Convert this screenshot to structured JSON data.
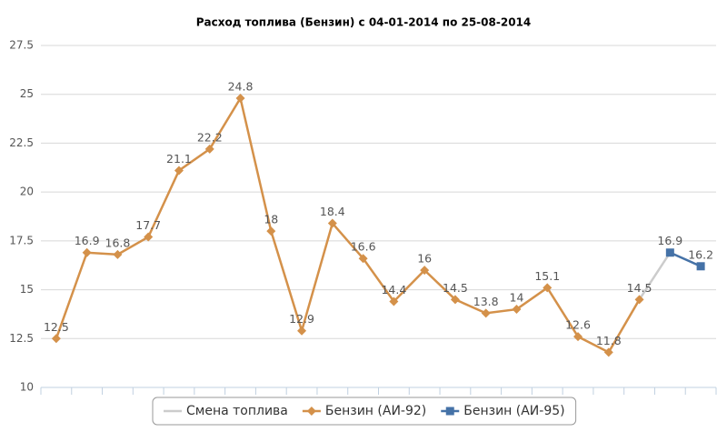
{
  "chart_data": {
    "type": "line",
    "title": "Расход топлива (Бензин) с 04-01-2014 по 25-08-2014",
    "categories": [
      null,
      null,
      null,
      null,
      null,
      null,
      null,
      null,
      null,
      null,
      null,
      null,
      null,
      null,
      null,
      null,
      null,
      null,
      null,
      null,
      null,
      null
    ],
    "series": [
      {
        "name": "Смена топлива",
        "color": "#cccccc",
        "marker": "none",
        "labels": false,
        "values": [
          null,
          null,
          null,
          null,
          null,
          null,
          null,
          null,
          null,
          null,
          null,
          null,
          null,
          null,
          null,
          null,
          null,
          null,
          null,
          14.5,
          16.9,
          null
        ]
      },
      {
        "name": "Бензин (АИ-92)",
        "color": "#d4914a",
        "marker": "diamond",
        "labels": true,
        "values": [
          12.5,
          16.9,
          16.8,
          17.7,
          21.1,
          22.2,
          24.8,
          18,
          12.9,
          18.4,
          16.6,
          14.4,
          16,
          14.5,
          13.8,
          14,
          15.1,
          12.6,
          11.8,
          14.5,
          null,
          null
        ]
      },
      {
        "name": "Бензин (АИ-95)",
        "color": "#4572a7",
        "marker": "square",
        "labels": true,
        "values": [
          null,
          null,
          null,
          null,
          null,
          null,
          null,
          null,
          null,
          null,
          null,
          null,
          null,
          null,
          null,
          null,
          null,
          null,
          null,
          null,
          16.9,
          16.2
        ]
      }
    ],
    "ylim": [
      10,
      27.5
    ],
    "yticks": [
      10,
      12.5,
      15,
      17.5,
      20,
      22.5,
      25,
      27.5
    ],
    "grid": true,
    "legend": "bottom"
  }
}
